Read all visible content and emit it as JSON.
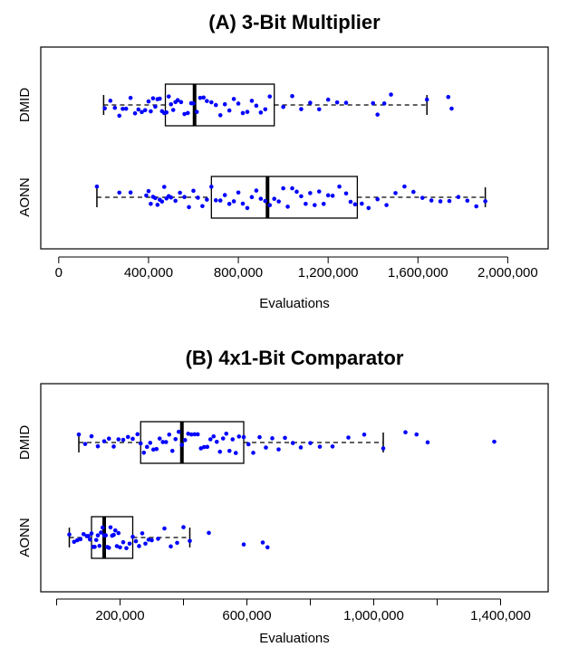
{
  "chart_data": [
    {
      "type": "boxplot",
      "title": "(A) 3-Bit Multiplier",
      "xlabel": "Evaluations",
      "ylabel": "",
      "xlim": [
        -80000,
        2180000
      ],
      "xticks": [
        0,
        400000,
        800000,
        1200000,
        1600000,
        2000000
      ],
      "xtick_labels": [
        "0",
        "400,000",
        "800,000",
        "1,200,000",
        "1,600,000",
        "2,000,000"
      ],
      "categories": [
        "DMID",
        "AONN"
      ],
      "grid": false,
      "point_color": "#0000ff",
      "boxes": [
        {
          "name": "DMID",
          "whisker_low": 200000,
          "q1": 475000,
          "median": 605000,
          "q3": 960000,
          "whisker_high": 1640000,
          "outliers": [
            1735000,
            1750000
          ]
        },
        {
          "name": "AONN",
          "whisker_low": 170000,
          "q1": 680000,
          "median": 930000,
          "q3": 1330000,
          "whisker_high": 1900000,
          "outliers": []
        }
      ],
      "points": [
        {
          "series": "DMID",
          "values": [
            205000,
            230000,
            250000,
            270000,
            285000,
            300000,
            320000,
            340000,
            355000,
            370000,
            385000,
            400000,
            410000,
            420000,
            430000,
            440000,
            450000,
            460000,
            470000,
            480000,
            490000,
            500000,
            510000,
            520000,
            530000,
            545000,
            560000,
            575000,
            590000,
            600000,
            615000,
            630000,
            645000,
            660000,
            680000,
            700000,
            720000,
            740000,
            760000,
            780000,
            800000,
            820000,
            840000,
            860000,
            880000,
            900000,
            920000,
            940000,
            1000000,
            1040000,
            1080000,
            1120000,
            1160000,
            1200000,
            1240000,
            1280000,
            1400000,
            1420000,
            1450000,
            1480000,
            1640000,
            1735000,
            1750000
          ]
        },
        {
          "series": "AONN",
          "values": [
            170000,
            270000,
            320000,
            390000,
            400000,
            410000,
            420000,
            430000,
            440000,
            450000,
            460000,
            470000,
            480000,
            490000,
            500000,
            520000,
            540000,
            560000,
            580000,
            600000,
            620000,
            640000,
            660000,
            680000,
            700000,
            720000,
            740000,
            760000,
            780000,
            800000,
            820000,
            840000,
            860000,
            880000,
            900000,
            920000,
            940000,
            960000,
            980000,
            1000000,
            1020000,
            1040000,
            1060000,
            1080000,
            1100000,
            1120000,
            1140000,
            1160000,
            1180000,
            1200000,
            1220000,
            1250000,
            1280000,
            1300000,
            1320000,
            1350000,
            1380000,
            1420000,
            1460000,
            1500000,
            1540000,
            1580000,
            1620000,
            1660000,
            1700000,
            1740000,
            1780000,
            1820000,
            1860000,
            1900000
          ]
        }
      ]
    },
    {
      "type": "boxplot",
      "title": "(B) 4x1-Bit Comparator",
      "xlabel": "Evaluations",
      "ylabel": "",
      "xlim": [
        -50000,
        1550000
      ],
      "xticks": [
        200000,
        600000,
        1000000,
        1400000
      ],
      "xtick_labels": [
        "200,000",
        "600,000",
        "1,000,000",
        "1,400,000"
      ],
      "minor_xticks": [
        0,
        400000,
        800000,
        1200000
      ],
      "categories": [
        "DMID",
        "AONN"
      ],
      "grid": false,
      "point_color": "#0000ff",
      "boxes": [
        {
          "name": "DMID",
          "whisker_low": 70000,
          "q1": 265000,
          "median": 395000,
          "q3": 590000,
          "whisker_high": 1030000,
          "outliers": [
            1100000,
            1135000,
            1170000,
            1380000
          ]
        },
        {
          "name": "AONN",
          "whisker_low": 40000,
          "q1": 110000,
          "median": 150000,
          "q3": 240000,
          "whisker_high": 420000,
          "outliers": [
            480000,
            590000,
            650000,
            665000
          ]
        }
      ],
      "points": [
        {
          "series": "DMID",
          "values": [
            70000,
            90000,
            110000,
            130000,
            150000,
            165000,
            180000,
            195000,
            210000,
            225000,
            240000,
            255000,
            265000,
            275000,
            285000,
            295000,
            305000,
            315000,
            325000,
            335000,
            345000,
            355000,
            365000,
            375000,
            385000,
            395000,
            405000,
            415000,
            425000,
            435000,
            445000,
            455000,
            465000,
            475000,
            485000,
            495000,
            505000,
            515000,
            525000,
            535000,
            545000,
            555000,
            565000,
            575000,
            590000,
            605000,
            620000,
            640000,
            660000,
            680000,
            700000,
            720000,
            745000,
            770000,
            800000,
            830000,
            870000,
            920000,
            970000,
            1030000,
            1100000,
            1135000,
            1170000,
            1380000
          ]
        },
        {
          "series": "AONN",
          "values": [
            40000,
            55000,
            65000,
            75000,
            85000,
            95000,
            100000,
            105000,
            110000,
            115000,
            120000,
            125000,
            130000,
            135000,
            140000,
            145000,
            150000,
            155000,
            160000,
            165000,
            170000,
            175000,
            180000,
            185000,
            190000,
            195000,
            200000,
            210000,
            220000,
            230000,
            240000,
            250000,
            260000,
            270000,
            280000,
            290000,
            300000,
            320000,
            340000,
            360000,
            380000,
            400000,
            420000,
            480000,
            590000,
            650000,
            665000
          ]
        }
      ]
    }
  ]
}
